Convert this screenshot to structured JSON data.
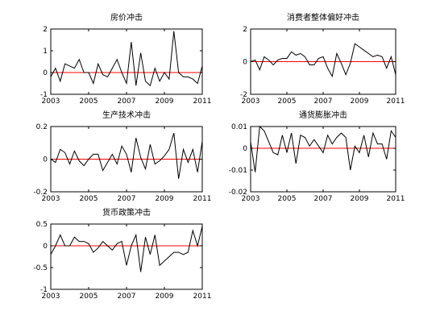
{
  "chart_data": [
    {
      "type": "line",
      "title": "房价冲击",
      "x": [
        2003,
        2003.25,
        2003.5,
        2003.75,
        2004,
        2004.25,
        2004.5,
        2004.75,
        2005,
        2005.25,
        2005.5,
        2005.75,
        2006,
        2006.25,
        2006.5,
        2006.75,
        2007,
        2007.25,
        2007.5,
        2007.75,
        2008,
        2008.25,
        2008.5,
        2008.75,
        2009,
        2009.25,
        2009.5,
        2009.75,
        2010,
        2010.25,
        2010.5,
        2010.75,
        2011
      ],
      "series": [
        {
          "color": "#000000",
          "values": [
            -0.2,
            0.2,
            -0.4,
            0.4,
            0.3,
            0.2,
            0.6,
            0.0,
            0.0,
            -0.5,
            0.4,
            -0.1,
            -0.2,
            0.2,
            0.6,
            0.0,
            -0.5,
            1.4,
            -0.6,
            0.9,
            -0.4,
            -0.6,
            0.2,
            -0.4,
            0.0,
            -0.3,
            1.9,
            0.0,
            -0.2,
            -0.2,
            -0.3,
            -0.5,
            0.3
          ]
        }
      ],
      "hline": 0,
      "hline_color": "#ff0000",
      "xlim": [
        2003,
        2011
      ],
      "xticks": [
        2003,
        2005,
        2007,
        2009,
        2011
      ],
      "ylim": [
        -1,
        2
      ],
      "yticks": [
        -1,
        0,
        1,
        2
      ]
    },
    {
      "type": "line",
      "title": "消费者整体偏好冲击",
      "x": [
        2003,
        2003.25,
        2003.5,
        2003.75,
        2004,
        2004.25,
        2004.5,
        2004.75,
        2005,
        2005.25,
        2005.5,
        2005.75,
        2006,
        2006.25,
        2006.5,
        2006.75,
        2007,
        2007.25,
        2007.5,
        2007.75,
        2008,
        2008.25,
        2008.5,
        2008.75,
        2009,
        2009.25,
        2009.5,
        2009.75,
        2010,
        2010.25,
        2010.5,
        2010.75,
        2011
      ],
      "series": [
        {
          "color": "#000000",
          "values": [
            0,
            0.1,
            -0.5,
            0.3,
            0.1,
            -0.2,
            0.1,
            0.2,
            0.2,
            0.6,
            0.4,
            0.5,
            0.3,
            -0.2,
            -0.2,
            0.2,
            0.3,
            -0.4,
            -0.9,
            0.5,
            -0.1,
            -0.8,
            -0.1,
            1.1,
            0.9,
            0.7,
            0.5,
            0.3,
            0.4,
            0.3,
            -0.4,
            0.3,
            -0.8
          ]
        }
      ],
      "hline": 0,
      "hline_color": "#ff0000",
      "xlim": [
        2003,
        2011
      ],
      "xticks": [
        2003,
        2005,
        2007,
        2009,
        2011
      ],
      "ylim": [
        -2,
        2
      ],
      "yticks": [
        -2,
        0,
        2
      ]
    },
    {
      "type": "line",
      "title": "生产技术冲击",
      "x": [
        2003,
        2003.25,
        2003.5,
        2003.75,
        2004,
        2004.25,
        2004.5,
        2004.75,
        2005,
        2005.25,
        2005.5,
        2005.75,
        2006,
        2006.25,
        2006.5,
        2006.75,
        2007,
        2007.25,
        2007.5,
        2007.75,
        2008,
        2008.25,
        2008.5,
        2008.75,
        2009,
        2009.25,
        2009.5,
        2009.75,
        2010,
        2010.25,
        2010.5,
        2010.75,
        2011
      ],
      "series": [
        {
          "color": "#000000",
          "values": [
            0,
            -0.02,
            0.06,
            0.04,
            -0.03,
            0.05,
            -0.01,
            -0.04,
            0,
            0.03,
            0.03,
            -0.07,
            -0.02,
            0.03,
            -0.03,
            0.08,
            0.03,
            -0.08,
            0.13,
            0.01,
            -0.06,
            0.09,
            -0.03,
            -0.01,
            0.02,
            0.06,
            0.16,
            -0.12,
            0.06,
            -0.02,
            0.06,
            -0.08,
            0.11
          ]
        }
      ],
      "hline": 0,
      "hline_color": "#ff0000",
      "xlim": [
        2003,
        2011
      ],
      "xticks": [
        2003,
        2005,
        2007,
        2009,
        2011
      ],
      "ylim": [
        -0.2,
        0.2
      ],
      "yticks": [
        -0.2,
        0,
        0.2
      ]
    },
    {
      "type": "line",
      "title": "通货膨胀冲击",
      "x": [
        2003,
        2003.25,
        2003.5,
        2003.75,
        2004,
        2004.25,
        2004.5,
        2004.75,
        2005,
        2005.25,
        2005.5,
        2005.75,
        2006,
        2006.25,
        2006.5,
        2006.75,
        2007,
        2007.25,
        2007.5,
        2007.75,
        2008,
        2008.25,
        2008.5,
        2008.75,
        2009,
        2009.25,
        2009.5,
        2009.75,
        2010,
        2010.25,
        2010.5,
        2010.75,
        2011
      ],
      "series": [
        {
          "color": "#000000",
          "values": [
            0.003,
            -0.011,
            0.01,
            0.008,
            0.003,
            -0.002,
            -0.003,
            0.006,
            -0.002,
            0.007,
            -0.007,
            0.006,
            0.005,
            0.001,
            0.004,
            0.001,
            -0.002,
            0.006,
            0.002,
            0.005,
            0.007,
            0.005,
            -0.01,
            0.001,
            -0.002,
            0.006,
            -0.004,
            0.007,
            0.002,
            0.002,
            -0.005,
            0.008,
            0.005
          ]
        }
      ],
      "hline": 0,
      "hline_color": "#ff0000",
      "xlim": [
        2003,
        2011
      ],
      "xticks": [
        2003,
        2005,
        2007,
        2009,
        2011
      ],
      "ylim": [
        -0.02,
        0.01
      ],
      "yticks": [
        -0.02,
        -0.01,
        0,
        0.01
      ]
    },
    {
      "type": "line",
      "title": "货币政策冲击",
      "x": [
        2003,
        2003.25,
        2003.5,
        2003.75,
        2004,
        2004.25,
        2004.5,
        2004.75,
        2005,
        2005.25,
        2005.5,
        2005.75,
        2006,
        2006.25,
        2006.5,
        2006.75,
        2007,
        2007.25,
        2007.5,
        2007.75,
        2008,
        2008.25,
        2008.5,
        2008.75,
        2009,
        2009.25,
        2009.5,
        2009.75,
        2010,
        2010.25,
        2010.5,
        2010.75,
        2011
      ],
      "series": [
        {
          "color": "#000000",
          "values": [
            -0.2,
            0,
            0.25,
            0,
            0,
            0.2,
            0.1,
            0.1,
            0.05,
            -0.15,
            -0.05,
            0.1,
            0,
            -0.1,
            0.05,
            0.1,
            -0.45,
            0,
            0.25,
            -0.6,
            0.2,
            -0.2,
            0.25,
            -0.45,
            -0.35,
            -0.25,
            -0.15,
            -0.15,
            -0.2,
            -0.15,
            0.35,
            0,
            0.45
          ]
        }
      ],
      "hline": 0,
      "hline_color": "#ff0000",
      "xlim": [
        2003,
        2011
      ],
      "xticks": [
        2003,
        2005,
        2007,
        2009,
        2011
      ],
      "ylim": [
        -1,
        0.5
      ],
      "yticks": [
        -1,
        -0.5,
        0,
        0.5
      ]
    }
  ]
}
